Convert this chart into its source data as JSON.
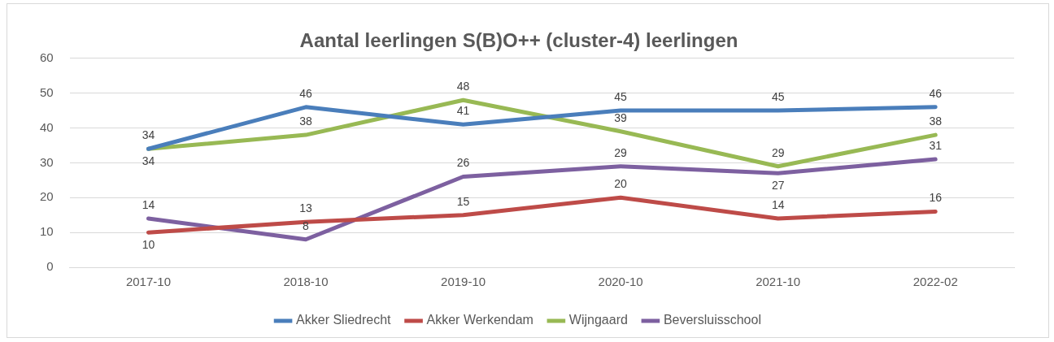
{
  "chart_data": {
    "type": "line",
    "title": "Aantal leerlingen S(B)O++ (cluster-4) leerlingen",
    "categories": [
      "2017-10",
      "2018-10",
      "2019-10",
      "2020-10",
      "2021-10",
      "2022-02"
    ],
    "series": [
      {
        "name": "Akker Sliedrecht",
        "color": "#4a7ebb",
        "values": [
          34,
          46,
          41,
          45,
          45,
          46
        ]
      },
      {
        "name": "Akker Werkendam",
        "color": "#be4b48",
        "values": [
          10,
          13,
          15,
          20,
          14,
          16
        ]
      },
      {
        "name": "Wijngaard",
        "color": "#98b954",
        "values": [
          34,
          38,
          48,
          39,
          29,
          38
        ]
      },
      {
        "name": "Beversluisschool",
        "color": "#7d60a0",
        "values": [
          14,
          8,
          26,
          29,
          27,
          31
        ]
      }
    ],
    "ylim": [
      0,
      60
    ],
    "yticks": [
      0,
      10,
      20,
      30,
      40,
      50,
      60
    ],
    "grid": "y",
    "legend": "bottom",
    "marker": "none",
    "line_style": "solid",
    "data_labels": true
  }
}
